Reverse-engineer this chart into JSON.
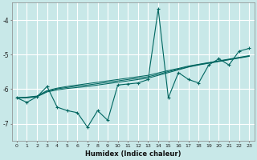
{
  "xlabel": "Humidex (Indice chaleur)",
  "bg_color": "#c8e8e8",
  "grid_color": "#ffffff",
  "line_color": "#006660",
  "xlim": [
    0,
    23
  ],
  "ylim": [
    -7.5,
    -3.5
  ],
  "yticks": [
    -7,
    -6,
    -5,
    -4
  ],
  "xticks": [
    0,
    1,
    2,
    3,
    4,
    5,
    6,
    7,
    8,
    9,
    10,
    11,
    12,
    13,
    14,
    15,
    16,
    17,
    18,
    19,
    20,
    21,
    22,
    23
  ],
  "x": [
    0,
    1,
    2,
    3,
    4,
    5,
    6,
    7,
    8,
    9,
    10,
    11,
    12,
    13,
    14,
    15,
    16,
    17,
    18,
    19,
    20,
    21,
    22,
    23
  ],
  "line_main": [
    -6.25,
    -6.38,
    -6.22,
    -5.92,
    -6.52,
    -6.62,
    -6.68,
    -7.1,
    -6.62,
    -6.9,
    -5.88,
    -5.85,
    -5.82,
    -5.72,
    -3.68,
    -6.25,
    -5.52,
    -5.72,
    -5.82,
    -5.3,
    -5.12,
    -5.3,
    -4.9,
    -4.82
  ],
  "line_a": [
    -6.25,
    -6.25,
    -6.22,
    -6.08,
    -6.02,
    -5.98,
    -5.95,
    -5.92,
    -5.88,
    -5.84,
    -5.8,
    -5.76,
    -5.72,
    -5.68,
    -5.6,
    -5.52,
    -5.44,
    -5.36,
    -5.3,
    -5.25,
    -5.2,
    -5.15,
    -5.1,
    -5.05
  ],
  "line_b": [
    -6.25,
    -6.23,
    -6.2,
    -6.04,
    -5.97,
    -5.92,
    -5.88,
    -5.84,
    -5.8,
    -5.76,
    -5.72,
    -5.68,
    -5.64,
    -5.6,
    -5.53,
    -5.46,
    -5.4,
    -5.33,
    -5.28,
    -5.23,
    -5.18,
    -5.13,
    -5.08,
    -5.03
  ],
  "line_c": [
    -6.25,
    -6.24,
    -6.21,
    -6.06,
    -5.99,
    -5.95,
    -5.91,
    -5.88,
    -5.84,
    -5.8,
    -5.76,
    -5.72,
    -5.68,
    -5.64,
    -5.57,
    -5.49,
    -5.42,
    -5.35,
    -5.29,
    -5.24,
    -5.19,
    -5.14,
    -5.09,
    -5.04
  ]
}
